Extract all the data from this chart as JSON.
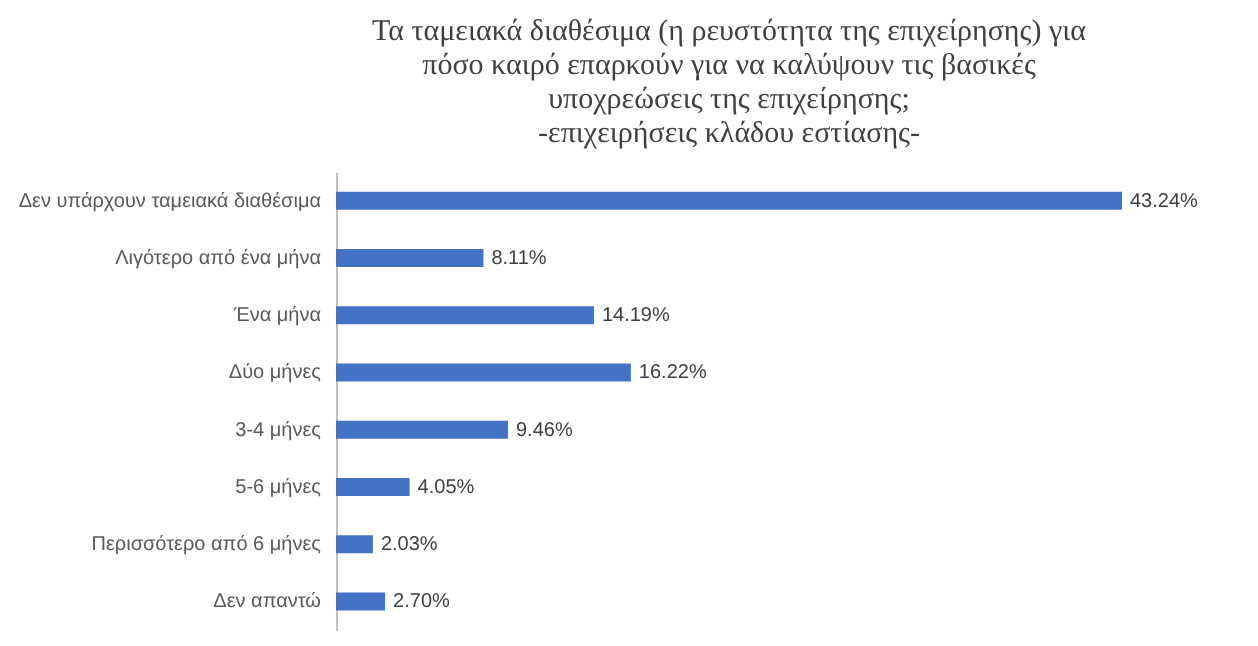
{
  "chart_data": {
    "type": "bar",
    "orientation": "horizontal",
    "title": [
      "Τα ταμειακά διαθέσιμα (η ρευστότητα της επιχείρησης) για",
      "πόσο καιρό επαρκούν για να καλύψουν τις βασικές",
      "υποχρεώσεις της επιχείρησης;",
      "-επιχειρήσεις κλάδου εστίασης-"
    ],
    "categories": [
      "Δεν υπάρχουν ταμειακά διαθέσιμα",
      "Λιγότερο από ένα μήνα",
      "Ένα μήνα",
      "Δύο μήνες",
      "3-4 μήνες",
      "5-6 μήνες",
      "Περισσότερο από 6 μήνες",
      "Δεν απαντώ"
    ],
    "values": [
      43.24,
      8.11,
      14.19,
      16.22,
      9.46,
      4.05,
      2.03,
      2.7
    ],
    "value_labels": [
      "43.24%",
      "8.11%",
      "14.19%",
      "16.22%",
      "9.46%",
      "4.05%",
      "2.03%",
      "2.70%"
    ],
    "color": "#4472c4",
    "grid": false,
    "tick_labels": "y"
  }
}
